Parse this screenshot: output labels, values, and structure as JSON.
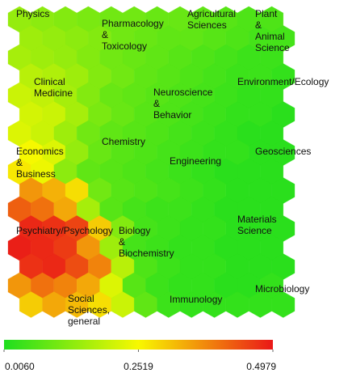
{
  "chart_data": {
    "type": "hexmap",
    "values": [
      [
        0.14,
        0.13,
        0.12,
        0.11,
        0.1,
        0.1,
        0.09,
        0.09,
        0.08,
        0.07,
        0.06,
        0.06
      ],
      [
        0.15,
        0.14,
        0.13,
        0.12,
        0.1,
        0.09,
        0.08,
        0.08,
        0.07,
        0.06,
        0.05,
        0.05
      ],
      [
        0.16,
        0.15,
        0.14,
        0.12,
        0.1,
        0.09,
        0.08,
        0.07,
        0.06,
        0.05,
        0.04,
        0.04
      ],
      [
        0.18,
        0.17,
        0.15,
        0.12,
        0.1,
        0.08,
        0.07,
        0.06,
        0.05,
        0.04,
        0.04,
        0.03
      ],
      [
        0.2,
        0.19,
        0.16,
        0.12,
        0.09,
        0.08,
        0.07,
        0.06,
        0.05,
        0.04,
        0.03,
        0.03
      ],
      [
        0.21,
        0.2,
        0.16,
        0.11,
        0.09,
        0.07,
        0.06,
        0.05,
        0.04,
        0.03,
        0.03,
        0.02
      ],
      [
        0.22,
        0.2,
        0.15,
        0.1,
        0.08,
        0.07,
        0.06,
        0.05,
        0.04,
        0.03,
        0.02,
        0.02
      ],
      [
        0.25,
        0.22,
        0.14,
        0.09,
        0.07,
        0.06,
        0.05,
        0.04,
        0.03,
        0.03,
        0.02,
        0.02
      ],
      [
        0.27,
        0.24,
        0.13,
        0.08,
        0.07,
        0.06,
        0.05,
        0.04,
        0.03,
        0.02,
        0.02,
        0.02
      ],
      [
        0.36,
        0.33,
        0.28,
        0.1,
        0.07,
        0.06,
        0.05,
        0.04,
        0.03,
        0.02,
        0.02,
        0.02
      ],
      [
        0.42,
        0.4,
        0.34,
        0.16,
        0.07,
        0.05,
        0.04,
        0.04,
        0.03,
        0.02,
        0.02,
        0.02
      ],
      [
        0.48,
        0.47,
        0.45,
        0.3,
        0.12,
        0.05,
        0.04,
        0.03,
        0.03,
        0.02,
        0.02,
        0.02
      ],
      [
        0.49,
        0.48,
        0.46,
        0.36,
        0.15,
        0.05,
        0.04,
        0.03,
        0.03,
        0.02,
        0.02,
        0.02
      ],
      [
        0.47,
        0.48,
        0.44,
        0.38,
        0.18,
        0.06,
        0.04,
        0.03,
        0.03,
        0.02,
        0.02,
        0.02
      ],
      [
        0.36,
        0.4,
        0.38,
        0.34,
        0.22,
        0.07,
        0.04,
        0.03,
        0.03,
        0.02,
        0.02,
        0.03
      ],
      [
        0.3,
        0.34,
        0.32,
        0.28,
        0.2,
        0.08,
        0.04,
        0.03,
        0.03,
        0.03,
        0.03,
        0.03
      ]
    ],
    "colorscale": [
      "#1ede1e",
      "#f8f800",
      "#ea1818"
    ],
    "clim": [
      0.006,
      0.4979
    ],
    "cticks": [
      {
        "value": 0.006,
        "label": "0.0060"
      },
      0.2519,
      0.4979
    ],
    "annotations": [
      [
        "Physics"
      ],
      [
        "Pharmacology",
        "&",
        "Toxicology"
      ],
      [
        "Agricultural",
        "Sciences"
      ],
      [
        "Plant",
        "&",
        "Animal",
        "Science"
      ],
      [
        "Clinical",
        "Medicine"
      ],
      [
        "Environment/Ecology"
      ],
      [
        "Neuroscience",
        "&",
        "Behavior"
      ],
      [
        "Chemistry"
      ],
      [
        "Economics",
        "&",
        "Business"
      ],
      [
        "Engineering"
      ],
      [
        "Geosciences"
      ],
      [
        "Psychiatry/Psychology"
      ],
      [
        "Biology",
        "&",
        "Biochemistry"
      ],
      [
        "Materials",
        "Science"
      ],
      [
        "Microbiology"
      ],
      [
        "Immunology"
      ],
      [
        "Social",
        "Sciences,",
        "general"
      ]
    ]
  }
}
